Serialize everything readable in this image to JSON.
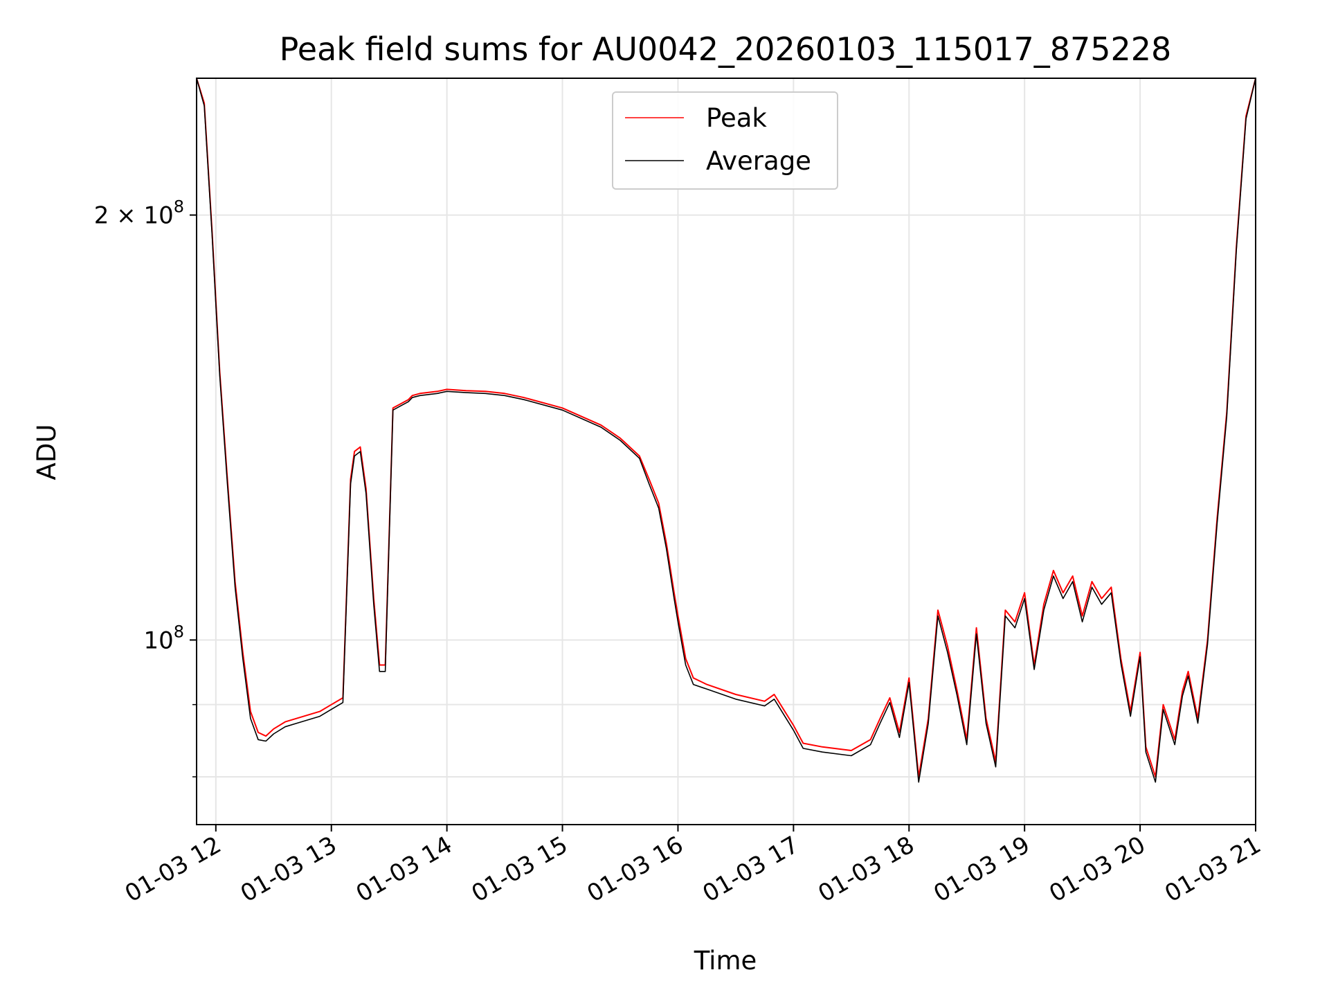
{
  "chart_data": {
    "type": "line",
    "title": "Peak field sums for AU0042_20260103_115017_875228",
    "xlabel": "Time",
    "ylabel": "ADU",
    "y_scale": "log",
    "grid": true,
    "legend_position": "upper-center",
    "xlim": [
      "2026-01-03 11:50",
      "2026-01-03 21:00"
    ],
    "ylim": [
      74000000,
      250000000
    ],
    "x_ticks": [
      {
        "label": "01-03 12",
        "time": "2026-01-03 12:00"
      },
      {
        "label": "01-03 13",
        "time": "2026-01-03 13:00"
      },
      {
        "label": "01-03 14",
        "time": "2026-01-03 14:00"
      },
      {
        "label": "01-03 15",
        "time": "2026-01-03 15:00"
      },
      {
        "label": "01-03 16",
        "time": "2026-01-03 16:00"
      },
      {
        "label": "01-03 17",
        "time": "2026-01-03 17:00"
      },
      {
        "label": "01-03 18",
        "time": "2026-01-03 18:00"
      },
      {
        "label": "01-03 19",
        "time": "2026-01-03 19:00"
      },
      {
        "label": "01-03 20",
        "time": "2026-01-03 20:00"
      },
      {
        "label": "01-03 21",
        "time": "2026-01-03 21:00"
      }
    ],
    "y_ticks_major": [
      {
        "value": 100000000,
        "base": "10",
        "exp": "8",
        "coef": ""
      },
      {
        "value": 200000000,
        "base": "10",
        "exp": "8",
        "coef": "2 × "
      }
    ],
    "y_ticks_minor": [
      80000000,
      90000000,
      300000000
    ],
    "series": [
      {
        "name": "Peak",
        "color": "#ff0000",
        "x": [
          "2026-01-03 11:50",
          "2026-01-03 11:54",
          "2026-01-03 11:58",
          "2026-01-03 12:02",
          "2026-01-03 12:06",
          "2026-01-03 12:10",
          "2026-01-03 12:14",
          "2026-01-03 12:18",
          "2026-01-03 12:22",
          "2026-01-03 12:26",
          "2026-01-03 12:30",
          "2026-01-03 12:36",
          "2026-01-03 12:42",
          "2026-01-03 12:48",
          "2026-01-03 12:54",
          "2026-01-03 13:00",
          "2026-01-03 13:06",
          "2026-01-03 13:10",
          "2026-01-03 13:12",
          "2026-01-03 13:15",
          "2026-01-03 13:18",
          "2026-01-03 13:22",
          "2026-01-03 13:25",
          "2026-01-03 13:28",
          "2026-01-03 13:32",
          "2026-01-03 13:36",
          "2026-01-03 13:40",
          "2026-01-03 13:42",
          "2026-01-03 13:46",
          "2026-01-03 13:55",
          "2026-01-03 14:00",
          "2026-01-03 14:10",
          "2026-01-03 14:20",
          "2026-01-03 14:30",
          "2026-01-03 14:40",
          "2026-01-03 15:00",
          "2026-01-03 15:20",
          "2026-01-03 15:30",
          "2026-01-03 15:40",
          "2026-01-03 15:45",
          "2026-01-03 15:50",
          "2026-01-03 15:54",
          "2026-01-03 15:58",
          "2026-01-03 16:00",
          "2026-01-03 16:04",
          "2026-01-03 16:08",
          "2026-01-03 16:15",
          "2026-01-03 16:30",
          "2026-01-03 16:45",
          "2026-01-03 16:50",
          "2026-01-03 17:00",
          "2026-01-03 17:05",
          "2026-01-03 17:15",
          "2026-01-03 17:30",
          "2026-01-03 17:40",
          "2026-01-03 17:45",
          "2026-01-03 17:50",
          "2026-01-03 17:55",
          "2026-01-03 18:00",
          "2026-01-03 18:05",
          "2026-01-03 18:10",
          "2026-01-03 18:15",
          "2026-01-03 18:20",
          "2026-01-03 18:25",
          "2026-01-03 18:30",
          "2026-01-03 18:35",
          "2026-01-03 18:40",
          "2026-01-03 18:45",
          "2026-01-03 18:50",
          "2026-01-03 18:55",
          "2026-01-03 19:00",
          "2026-01-03 19:05",
          "2026-01-03 19:10",
          "2026-01-03 19:15",
          "2026-01-03 19:20",
          "2026-01-03 19:25",
          "2026-01-03 19:30",
          "2026-01-03 19:35",
          "2026-01-03 19:40",
          "2026-01-03 19:45",
          "2026-01-03 19:50",
          "2026-01-03 19:55",
          "2026-01-03 20:00",
          "2026-01-03 20:03",
          "2026-01-03 20:08",
          "2026-01-03 20:12",
          "2026-01-03 20:18",
          "2026-01-03 20:22",
          "2026-01-03 20:25",
          "2026-01-03 20:30",
          "2026-01-03 20:35",
          "2026-01-03 20:40",
          "2026-01-03 20:45",
          "2026-01-03 20:50",
          "2026-01-03 20:55",
          "2026-01-03 21:00"
        ],
        "y": [
          250000000,
          240000000,
          195000000,
          155000000,
          130000000,
          110000000,
          98000000,
          89000000,
          86000000,
          85500000,
          86500000,
          87500000,
          88000000,
          88500000,
          89000000,
          90000000,
          91000000,
          130000000,
          136000000,
          137000000,
          128000000,
          107000000,
          96000000,
          96000000,
          146000000,
          147000000,
          148000000,
          149000000,
          149500000,
          150000000,
          150500000,
          150200000,
          150000000,
          149500000,
          148500000,
          146000000,
          142000000,
          139000000,
          135000000,
          130000000,
          125000000,
          117000000,
          108000000,
          104000000,
          97000000,
          94000000,
          93000000,
          91500000,
          90500000,
          91500000,
          87000000,
          84500000,
          84000000,
          83500000,
          85000000,
          88000000,
          91000000,
          86000000,
          94000000,
          80000000,
          88000000,
          105000000,
          99000000,
          92000000,
          85000000,
          102000000,
          88000000,
          82000000,
          105000000,
          103000000,
          108000000,
          96000000,
          106000000,
          112000000,
          108000000,
          111000000,
          104000000,
          110000000,
          107000000,
          109000000,
          97000000,
          89000000,
          98000000,
          84000000,
          80000000,
          90000000,
          85000000,
          92000000,
          95000000,
          88000000,
          100000000,
          122000000,
          145000000,
          190000000,
          235000000,
          250000000
        ]
      },
      {
        "name": "Average",
        "color": "#000000",
        "x": [
          "2026-01-03 11:50",
          "2026-01-03 11:54",
          "2026-01-03 11:58",
          "2026-01-03 12:02",
          "2026-01-03 12:06",
          "2026-01-03 12:10",
          "2026-01-03 12:14",
          "2026-01-03 12:18",
          "2026-01-03 12:22",
          "2026-01-03 12:26",
          "2026-01-03 12:30",
          "2026-01-03 12:36",
          "2026-01-03 12:42",
          "2026-01-03 12:48",
          "2026-01-03 12:54",
          "2026-01-03 13:00",
          "2026-01-03 13:06",
          "2026-01-03 13:10",
          "2026-01-03 13:12",
          "2026-01-03 13:15",
          "2026-01-03 13:18",
          "2026-01-03 13:22",
          "2026-01-03 13:25",
          "2026-01-03 13:28",
          "2026-01-03 13:32",
          "2026-01-03 13:36",
          "2026-01-03 13:40",
          "2026-01-03 13:42",
          "2026-01-03 13:46",
          "2026-01-03 13:55",
          "2026-01-03 14:00",
          "2026-01-03 14:10",
          "2026-01-03 14:20",
          "2026-01-03 14:30",
          "2026-01-03 14:40",
          "2026-01-03 15:00",
          "2026-01-03 15:20",
          "2026-01-03 15:30",
          "2026-01-03 15:40",
          "2026-01-03 15:45",
          "2026-01-03 15:50",
          "2026-01-03 15:54",
          "2026-01-03 15:58",
          "2026-01-03 16:00",
          "2026-01-03 16:04",
          "2026-01-03 16:08",
          "2026-01-03 16:15",
          "2026-01-03 16:30",
          "2026-01-03 16:45",
          "2026-01-03 16:50",
          "2026-01-03 17:00",
          "2026-01-03 17:05",
          "2026-01-03 17:15",
          "2026-01-03 17:30",
          "2026-01-03 17:40",
          "2026-01-03 17:45",
          "2026-01-03 17:50",
          "2026-01-03 17:55",
          "2026-01-03 18:00",
          "2026-01-03 18:05",
          "2026-01-03 18:10",
          "2026-01-03 18:15",
          "2026-01-03 18:20",
          "2026-01-03 18:25",
          "2026-01-03 18:30",
          "2026-01-03 18:35",
          "2026-01-03 18:40",
          "2026-01-03 18:45",
          "2026-01-03 18:50",
          "2026-01-03 18:55",
          "2026-01-03 19:00",
          "2026-01-03 19:05",
          "2026-01-03 19:10",
          "2026-01-03 19:15",
          "2026-01-03 19:20",
          "2026-01-03 19:25",
          "2026-01-03 19:30",
          "2026-01-03 19:35",
          "2026-01-03 19:40",
          "2026-01-03 19:45",
          "2026-01-03 19:50",
          "2026-01-03 19:55",
          "2026-01-03 20:00",
          "2026-01-03 20:03",
          "2026-01-03 20:08",
          "2026-01-03 20:12",
          "2026-01-03 20:18",
          "2026-01-03 20:22",
          "2026-01-03 20:25",
          "2026-01-03 20:30",
          "2026-01-03 20:35",
          "2026-01-03 20:40",
          "2026-01-03 20:45",
          "2026-01-03 20:50",
          "2026-01-03 20:55",
          "2026-01-03 21:00"
        ],
        "y": [
          250000000,
          239000000,
          194000000,
          154000000,
          129000000,
          109000000,
          97000000,
          88000000,
          85000000,
          84800000,
          85800000,
          86800000,
          87300000,
          87800000,
          88300000,
          89300000,
          90300000,
          129000000,
          135000000,
          136000000,
          127000000,
          106000000,
          95000000,
          95000000,
          145500000,
          146500000,
          147500000,
          148500000,
          149000000,
          149500000,
          150000000,
          149700000,
          149500000,
          149000000,
          148000000,
          145500000,
          141500000,
          138500000,
          134500000,
          129000000,
          124000000,
          116000000,
          107000000,
          103000000,
          96000000,
          93000000,
          92300000,
          90800000,
          89800000,
          90800000,
          86300000,
          83800000,
          83300000,
          82800000,
          84300000,
          87300000,
          90300000,
          85300000,
          93300000,
          79300000,
          87300000,
          104000000,
          98000000,
          91300000,
          84300000,
          101000000,
          87300000,
          81300000,
          104000000,
          102000000,
          107000000,
          95300000,
          105000000,
          111000000,
          107000000,
          110000000,
          103000000,
          109000000,
          106000000,
          108000000,
          96300000,
          88300000,
          97300000,
          83300000,
          79300000,
          89300000,
          84300000,
          91300000,
          94300000,
          87300000,
          99300000,
          121000000,
          144000000,
          189000000,
          234000000,
          250000000
        ]
      }
    ]
  }
}
